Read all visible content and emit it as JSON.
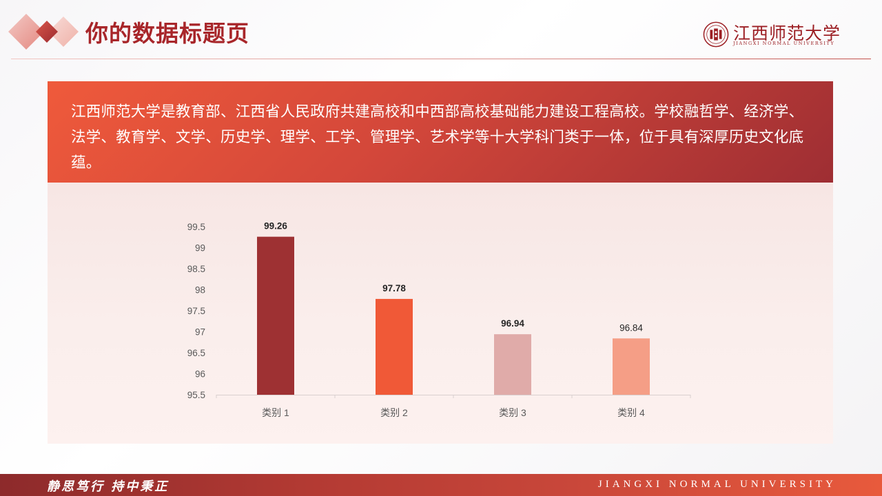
{
  "header": {
    "title": "你的数据标题页",
    "logo_cn": "江西师范大学",
    "logo_en": "JIANGXI NORMAL UNIVERSITY"
  },
  "intro": {
    "text": "江西师范大学是教育部、江西省人民政府共建高校和中西部高校基础能力建设工程高校。学校融哲学、经济学、法学、教育学、文学、历史学、理学、工学、管理学、艺术学等十大学科门类于一体，位于具有深厚历史文化底蕴。"
  },
  "chart_data": {
    "type": "bar",
    "title": "",
    "xlabel": "",
    "ylabel": "",
    "categories": [
      "类别 1",
      "类别 2",
      "类别 3",
      "类别 4"
    ],
    "values": [
      99.26,
      97.78,
      96.94,
      96.84
    ],
    "data_labels": [
      "99.26",
      "97.78",
      "96.94",
      "96.84"
    ],
    "ylim": [
      95.5,
      99.5
    ],
    "yticks": [
      95.5,
      96,
      96.5,
      97,
      97.5,
      98,
      98.5,
      99,
      99.5
    ],
    "ytick_labels": [
      "95.5",
      "96",
      "96.5",
      "97",
      "97.5",
      "98",
      "98.5",
      "99",
      "99.5"
    ],
    "bar_colors": [
      "#9e3133",
      "#f05937",
      "#e0aba9",
      "#f59e86"
    ],
    "grid": false,
    "legend": "none"
  },
  "footer": {
    "motto": "静思笃行 持中秉正",
    "university_en": "JIANGXI NORMAL UNIVERSITY"
  },
  "colors": {
    "accent_dark": "#9e2e33",
    "accent": "#f05937",
    "title": "#a8262a"
  }
}
